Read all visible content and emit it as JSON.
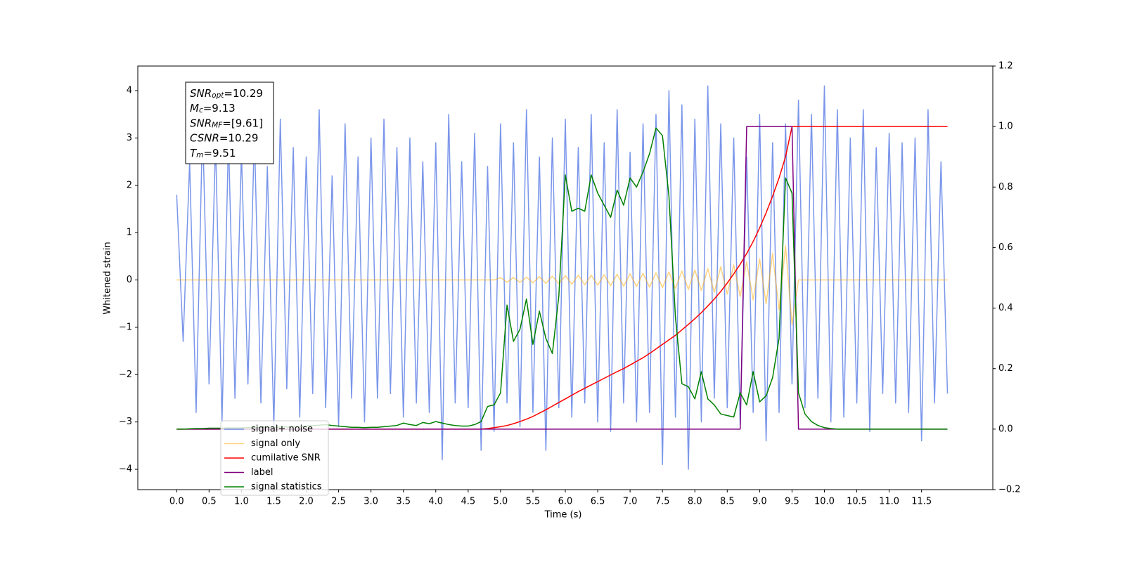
{
  "chart_data": {
    "type": "line",
    "xlabel": "Time (s)",
    "ylabel": "Whitened strain",
    "xlim": [
      -0.6,
      12.6
    ],
    "ylim": [
      -4.43,
      4.52
    ],
    "y2lim": [
      -0.2,
      1.2
    ],
    "xticks": [
      {
        "value": 0,
        "label": "0.0"
      },
      0.5,
      {
        "value": 1,
        "label": "1.0"
      },
      1.5,
      {
        "value": 2,
        "label": "2.0"
      },
      2.5,
      {
        "value": 3,
        "label": "3.0"
      },
      3.5,
      {
        "value": 4,
        "label": "4.0"
      },
      4.5,
      {
        "value": 5,
        "label": "5.0"
      },
      5.5,
      {
        "value": 6,
        "label": "6.0"
      },
      6.5,
      {
        "value": 7,
        "label": "7.0"
      },
      7.5,
      {
        "value": 8,
        "label": "8.0"
      },
      8.5,
      {
        "value": 9,
        "label": "9.0"
      },
      9.5,
      {
        "value": 10,
        "label": "10.0"
      },
      10.5,
      {
        "value": 11,
        "label": "11.0"
      },
      11.5
    ],
    "yticks": [
      {
        "value": -4,
        "label": "−4"
      },
      {
        "value": -3,
        "label": "−3"
      },
      {
        "value": -2,
        "label": "−2"
      },
      {
        "value": -1,
        "label": "−1"
      },
      0,
      1,
      2,
      3,
      4
    ],
    "y2ticks": [
      {
        "value": -0.2,
        "label": "−0.2"
      },
      {
        "value": 0,
        "label": "0.0"
      },
      0.2,
      0.4,
      0.6,
      0.8,
      {
        "value": 1,
        "label": "1.0"
      },
      1.2
    ],
    "grid": false,
    "legend": "lower left",
    "annotations": [
      {
        "name": "SNR",
        "sub": "opt",
        "text": "=10.29"
      },
      {
        "name": "M",
        "sub": "c",
        "text": "=9.13"
      },
      {
        "name": "SNR",
        "sub": "MF",
        "text": "=[9.61]"
      },
      {
        "name": "CSNR",
        "text": "=10.29"
      },
      {
        "name": "T",
        "sub": "m",
        "text": "=9.51"
      }
    ],
    "x": [
      0.0,
      0.1,
      0.2,
      0.3,
      0.4,
      0.5,
      0.6,
      0.7,
      0.8,
      0.9,
      1.0,
      1.1,
      1.2,
      1.3,
      1.4,
      1.5,
      1.6,
      1.7,
      1.8,
      1.9,
      2.0,
      2.1,
      2.2,
      2.3,
      2.4,
      2.5,
      2.6,
      2.7,
      2.8,
      2.9,
      3.0,
      3.1,
      3.2,
      3.3,
      3.4,
      3.5,
      3.6,
      3.7,
      3.8,
      3.9,
      4.0,
      4.1,
      4.2,
      4.3,
      4.4,
      4.5,
      4.6,
      4.7,
      4.8,
      4.9,
      5.0,
      5.1,
      5.2,
      5.3,
      5.4,
      5.5,
      5.6,
      5.7,
      5.8,
      5.9,
      6.0,
      6.1,
      6.2,
      6.3,
      6.4,
      6.5,
      6.6,
      6.7,
      6.8,
      6.9,
      7.0,
      7.1,
      7.2,
      7.3,
      7.4,
      7.5,
      7.6,
      7.7,
      7.8,
      7.9,
      8.0,
      8.1,
      8.2,
      8.3,
      8.4,
      8.5,
      8.6,
      8.7,
      8.8,
      8.9,
      9.0,
      9.1,
      9.2,
      9.3,
      9.4,
      9.5,
      9.6,
      9.7,
      9.8,
      9.9,
      10.0,
      10.1,
      10.2,
      10.3,
      10.4,
      10.5,
      10.6,
      10.7,
      10.8,
      10.9,
      11.0,
      11.1,
      11.2,
      11.3,
      11.4,
      11.5,
      11.6,
      11.7,
      11.8,
      11.9
    ],
    "series": [
      {
        "name": "signal+ noise",
        "color": "#4169e1",
        "alpha": 0.7,
        "axis": "y",
        "values": [
          1.8,
          -1.3,
          2.5,
          -2.8,
          3.3,
          -2.2,
          2.9,
          -3.0,
          3.0,
          -2.5,
          2.7,
          -2.2,
          3.1,
          -2.6,
          2.4,
          -3.1,
          3.4,
          -2.3,
          2.8,
          -2.9,
          2.6,
          -2.4,
          3.6,
          -2.7,
          2.2,
          -3.1,
          3.3,
          -2.5,
          2.6,
          -3.0,
          3.0,
          -2.5,
          3.4,
          -2.4,
          2.8,
          -2.9,
          3.0,
          -2.6,
          2.5,
          -2.8,
          2.9,
          -3.8,
          3.5,
          -2.6,
          2.5,
          -2.7,
          3.1,
          -3.6,
          2.4,
          -3.2,
          3.3,
          -2.6,
          2.9,
          -3.1,
          3.6,
          -2.8,
          2.6,
          -3.6,
          3.0,
          -2.7,
          3.4,
          -2.9,
          2.8,
          -2.6,
          3.5,
          -3.0,
          2.9,
          -3.2,
          3.6,
          -2.6,
          2.7,
          -3.0,
          3.3,
          -2.8,
          3.5,
          -3.9,
          4.0,
          -2.9,
          3.7,
          -4.0,
          3.4,
          -3.0,
          4.1,
          -2.5,
          3.3,
          -2.7,
          3.0,
          -3.1,
          2.6,
          -2.8,
          3.5,
          -3.4,
          2.9,
          -2.8,
          3.3,
          -2.2,
          3.8,
          -2.7,
          3.5,
          -2.5,
          4.1,
          -3.0,
          3.6,
          -2.9,
          3.0,
          -2.6,
          3.6,
          -3.2,
          2.8,
          -2.4,
          3.1,
          -2.6,
          2.9,
          -2.8,
          3.0,
          -3.4,
          3.6,
          -2.6,
          2.5,
          -2.4
        ]
      },
      {
        "name": "signal only",
        "color": "#ffa500",
        "alpha": 0.5,
        "axis": "y",
        "values": [
          0,
          0,
          0,
          0,
          0,
          0,
          0,
          0,
          0,
          0,
          0,
          0,
          0,
          0,
          0,
          0,
          0,
          0,
          0,
          0,
          0,
          0,
          0,
          0,
          0,
          0,
          0,
          0,
          0,
          0,
          0,
          0,
          0,
          0,
          0,
          0,
          0,
          0,
          0,
          0,
          0,
          0,
          0,
          0,
          0,
          0,
          0,
          0,
          0,
          0,
          0.05,
          -0.05,
          0.05,
          -0.05,
          0.06,
          -0.06,
          0.07,
          -0.07,
          0.08,
          -0.08,
          0.09,
          -0.09,
          0.1,
          -0.1,
          0.1,
          -0.11,
          0.11,
          -0.12,
          0.12,
          -0.13,
          0.13,
          -0.14,
          0.14,
          -0.15,
          0.15,
          -0.16,
          0.17,
          -0.18,
          0.19,
          -0.2,
          0.21,
          -0.22,
          0.24,
          -0.26,
          0.28,
          -0.3,
          0.32,
          -0.35,
          0.38,
          -0.42,
          0.45,
          -0.5,
          0.56,
          -0.63,
          0.72,
          -0.95,
          0,
          0,
          0,
          0,
          0,
          0,
          0,
          0,
          0,
          0,
          0,
          0,
          0,
          0,
          0,
          0,
          0,
          0,
          0,
          0,
          0,
          0,
          0,
          0
        ]
      },
      {
        "name": "cumilative SNR",
        "color": "#ff0000",
        "alpha": 1,
        "axis": "y2",
        "values": [
          0,
          0,
          0,
          0,
          0,
          0,
          0,
          0,
          0,
          0,
          0,
          0,
          0,
          0,
          0,
          0,
          0,
          0,
          0,
          0,
          0,
          0,
          0,
          0,
          0,
          0,
          0,
          0,
          0,
          0,
          0,
          0,
          0,
          0,
          0,
          0,
          0,
          0,
          0,
          0,
          0,
          0,
          0,
          0,
          0,
          0,
          0,
          0,
          0.002,
          0.005,
          0.008,
          0.012,
          0.018,
          0.025,
          0.033,
          0.042,
          0.053,
          0.064,
          0.076,
          0.088,
          0.1,
          0.112,
          0.124,
          0.135,
          0.146,
          0.157,
          0.168,
          0.179,
          0.19,
          0.2,
          0.212,
          0.224,
          0.236,
          0.25,
          0.265,
          0.28,
          0.295,
          0.31,
          0.328,
          0.346,
          0.365,
          0.385,
          0.407,
          0.43,
          0.455,
          0.483,
          0.513,
          0.545,
          0.58,
          0.62,
          0.665,
          0.715,
          0.77,
          0.83,
          0.9,
          1.0,
          1.0,
          1.0,
          1.0,
          1.0,
          1.0,
          1.0,
          1.0,
          1.0,
          1.0,
          1.0,
          1.0,
          1.0,
          1.0,
          1.0,
          1.0,
          1.0,
          1.0,
          1.0,
          1.0,
          1.0,
          1.0,
          1.0,
          1.0,
          1.0
        ]
      },
      {
        "name": "label",
        "color": "#800080",
        "alpha": 1,
        "axis": "y2",
        "values": [
          0,
          0,
          0,
          0,
          0,
          0,
          0,
          0,
          0,
          0,
          0,
          0,
          0,
          0,
          0,
          0,
          0,
          0,
          0,
          0,
          0,
          0,
          0,
          0,
          0,
          0,
          0,
          0,
          0,
          0,
          0,
          0,
          0,
          0,
          0,
          0,
          0,
          0,
          0,
          0,
          0,
          0,
          0,
          0,
          0,
          0,
          0,
          0,
          0,
          0,
          0,
          0,
          0,
          0,
          0,
          0,
          0,
          0,
          0,
          0,
          0,
          0,
          0,
          0,
          0,
          0,
          0,
          0,
          0,
          0,
          0,
          0,
          0,
          0,
          0,
          0,
          0,
          0,
          0,
          0,
          0,
          0,
          0,
          0,
          0,
          0,
          0,
          0,
          1,
          1,
          1,
          1,
          1,
          1,
          1,
          1,
          0,
          0,
          0,
          0,
          0,
          0,
          0,
          0,
          0,
          0,
          0,
          0,
          0,
          0,
          0,
          0,
          0,
          0,
          0,
          0,
          0,
          0,
          0,
          0
        ]
      },
      {
        "name": "signal statistics",
        "color": "#008000",
        "alpha": 1,
        "axis": "y2",
        "values": [
          0.0,
          0.0,
          0.001,
          0.002,
          0.002,
          0.003,
          0.003,
          0.003,
          0.004,
          0.004,
          0.004,
          0.005,
          0.005,
          0.005,
          0.006,
          0.006,
          0.007,
          0.007,
          0.008,
          0.008,
          0.01,
          0.012,
          0.013,
          0.015,
          0.012,
          0.01,
          0.008,
          0.006,
          0.006,
          0.005,
          0.006,
          0.006,
          0.008,
          0.01,
          0.012,
          0.02,
          0.015,
          0.012,
          0.022,
          0.018,
          0.025,
          0.02,
          0.015,
          0.012,
          0.01,
          0.01,
          0.015,
          0.025,
          0.075,
          0.08,
          0.12,
          0.41,
          0.29,
          0.33,
          0.43,
          0.28,
          0.39,
          0.3,
          0.25,
          0.44,
          0.84,
          0.72,
          0.73,
          0.72,
          0.84,
          0.78,
          0.74,
          0.7,
          0.79,
          0.74,
          0.83,
          0.8,
          0.85,
          0.91,
          0.995,
          0.97,
          0.77,
          0.37,
          0.15,
          0.14,
          0.1,
          0.19,
          0.1,
          0.08,
          0.05,
          0.045,
          0.04,
          0.12,
          0.08,
          0.19,
          0.09,
          0.11,
          0.17,
          0.3,
          0.83,
          0.78,
          0.12,
          0.05,
          0.025,
          0.012,
          0.005,
          0.002,
          0,
          0,
          0,
          0,
          0,
          0,
          0,
          0,
          0,
          0,
          0,
          0,
          0,
          0,
          0,
          0,
          0,
          0
        ]
      }
    ]
  }
}
